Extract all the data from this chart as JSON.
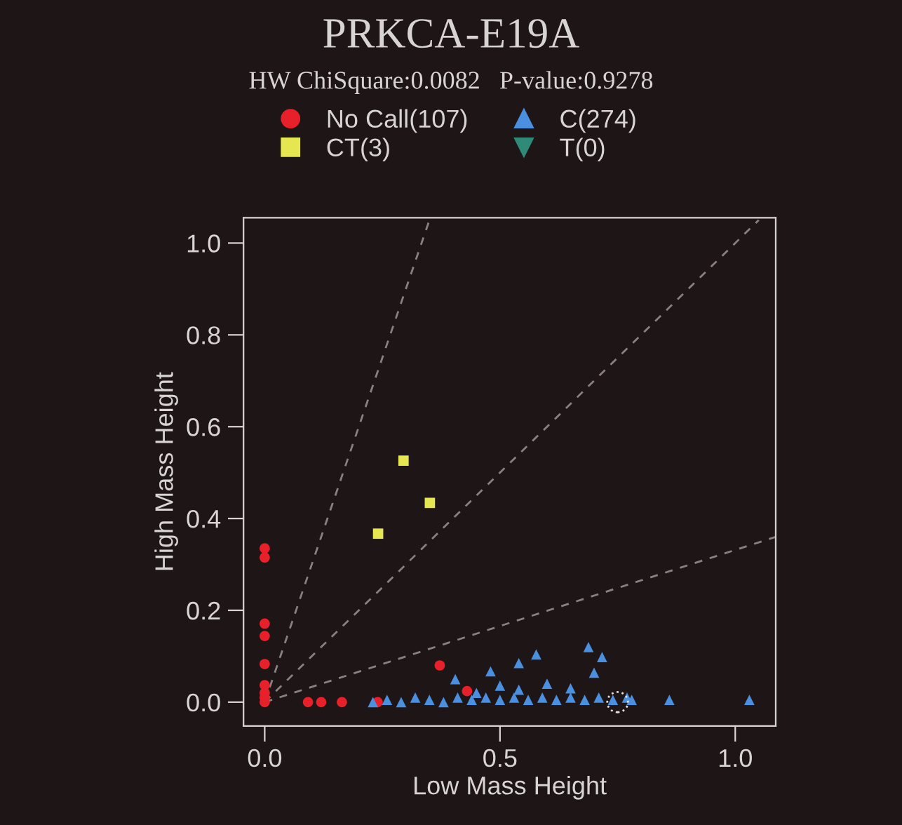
{
  "chart_data": {
    "type": "scatter",
    "title": "PRKCA-E19A",
    "subtitle": "HW ChiSquare:0.0082   P-value:0.9278",
    "xlabel": "Low Mass Height",
    "ylabel": "High Mass Height",
    "xlim": [
      -0.045,
      1.086
    ],
    "ylim": [
      -0.052,
      1.055
    ],
    "xticks": [
      {
        "value": 0,
        "label": "0.0"
      },
      {
        "value": 0.5,
        "label": "0.5"
      },
      {
        "value": 1,
        "label": "1.0"
      }
    ],
    "yticks": [
      {
        "value": 0,
        "label": "0.0"
      },
      {
        "value": 0.2,
        "label": "0.2"
      },
      {
        "value": 0.4,
        "label": "0.4"
      },
      {
        "value": 0.6,
        "label": "0.6"
      },
      {
        "value": 0.8,
        "label": "0.8"
      },
      {
        "value": 1,
        "label": "1.0"
      }
    ],
    "grid": false,
    "legend": "top",
    "series": [
      {
        "type": "line",
        "line_style": "dashed",
        "marker": "none",
        "color": "#8a8080",
        "x": [
          0,
          0.35
        ],
        "values": [
          0,
          1.05
        ]
      },
      {
        "type": "line",
        "line_style": "dashed",
        "marker": "none",
        "color": "#8a8080",
        "x": [
          0,
          1.05
        ],
        "values": [
          0,
          1.05
        ]
      },
      {
        "type": "line",
        "line_style": "dashed",
        "marker": "none",
        "color": "#8a8080",
        "x": [
          0,
          1.086
        ],
        "values": [
          0,
          0.36
        ]
      },
      {
        "name": "No Call(107)",
        "marker": "circle",
        "color": "#e8202a",
        "x": [
          0,
          0,
          0,
          0,
          0,
          0,
          0,
          0,
          0,
          0.092,
          0.12,
          0.164,
          0.24,
          0.372,
          0.43
        ],
        "values": [
          0.315,
          0.335,
          0.171,
          0.144,
          0.083,
          0.037,
          0.02,
          0.01,
          0.0,
          0.0,
          0.0,
          0.0,
          0.0,
          0.08,
          0.024
        ]
      },
      {
        "name": "C(274)",
        "marker": "triangle",
        "color": "#4a8fe0",
        "x": [
          0.23,
          0.26,
          0.29,
          0.32,
          0.35,
          0.38,
          0.41,
          0.44,
          0.47,
          0.5,
          0.53,
          0.56,
          0.59,
          0.62,
          0.65,
          0.68,
          0.71,
          0.74,
          0.77,
          0.78,
          0.86,
          1.03,
          0.405,
          0.48,
          0.5,
          0.54,
          0.54,
          0.577,
          0.688,
          0.717,
          0.7,
          0.65,
          0.6,
          0.45
        ],
        "values": [
          0.0,
          0.005,
          0.0,
          0.01,
          0.005,
          0.0,
          0.01,
          0.005,
          0.01,
          0.005,
          0.01,
          0.005,
          0.01,
          0.005,
          0.01,
          0.005,
          0.01,
          0.005,
          0.01,
          0.005,
          0.005,
          0.005,
          0.05,
          0.067,
          0.036,
          0.085,
          0.027,
          0.104,
          0.12,
          0.098,
          0.064,
          0.03,
          0.04,
          0.02
        ]
      },
      {
        "name": "CT(3)",
        "marker": "square",
        "color": "#e6e650",
        "x": [
          0.295,
          0.351,
          0.241
        ],
        "values": [
          0.526,
          0.434,
          0.367
        ]
      },
      {
        "name": "T(0)",
        "marker": "triangle_down",
        "color": "#2f8a78"
      }
    ]
  }
}
